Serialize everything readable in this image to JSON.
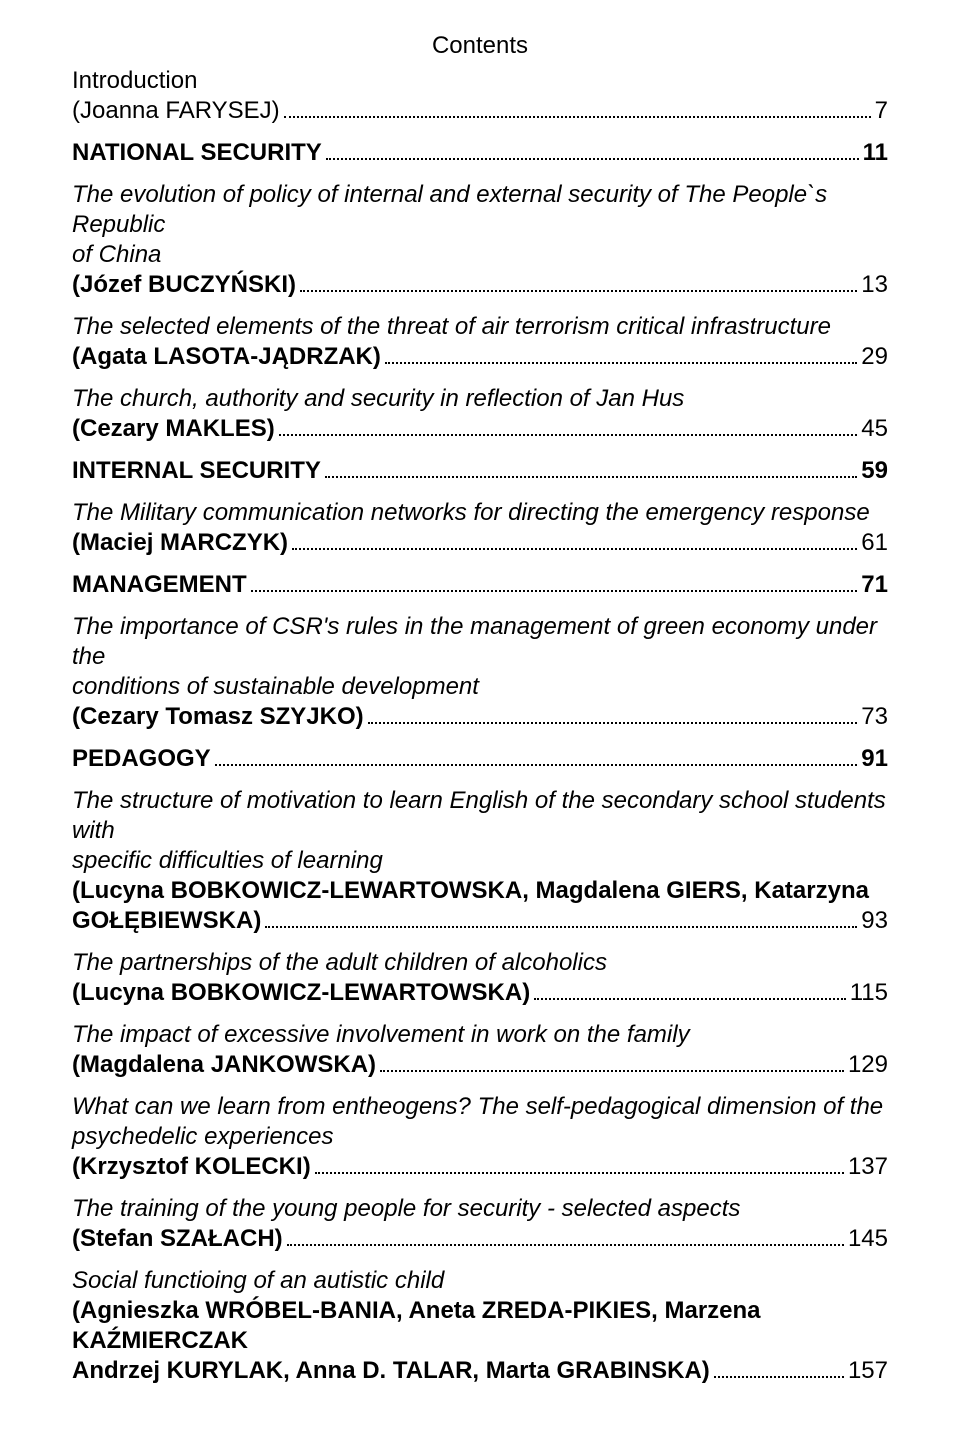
{
  "title": "Contents",
  "colors": {
    "text": "#000000",
    "background": "#ffffff",
    "leader": "#000000"
  },
  "typography": {
    "font_family": "Arial",
    "title_fontsize": 24,
    "body_fontsize": 24,
    "line_height": 1.25
  },
  "entries": [
    {
      "type": "entry",
      "title_lines": [
        "Introduction"
      ],
      "title_style": "normal",
      "author_prefix": "(",
      "author": "Joanna FARYSEJ",
      "author_suffix": ")",
      "author_style": "normal",
      "page": "7"
    },
    {
      "type": "section",
      "label": "NATIONAL SECURITY",
      "page": "11"
    },
    {
      "type": "entry",
      "title_lines": [
        "The evolution of policy of internal and external security of The People`s Republic",
        "of China"
      ],
      "title_style": "italic",
      "author_prefix": "(",
      "author": "Józef BUCZYŃSKI",
      "author_suffix": ")",
      "author_style": "bold",
      "page": "13"
    },
    {
      "type": "entry",
      "title_lines": [
        "The selected elements of the threat of air terrorism critical infrastructure"
      ],
      "title_style": "italic",
      "author_prefix": "(",
      "author": "Agata LASOTA-JĄDRZAK",
      "author_suffix": ")",
      "author_style": "bold",
      "page": "29"
    },
    {
      "type": "entry",
      "title_lines": [
        "The church, authority and security in reflection of Jan Hus"
      ],
      "title_style": "italic",
      "author_prefix": "(",
      "author": "Cezary MAKLES",
      "author_suffix": ")",
      "author_style": "bold",
      "page": "45"
    },
    {
      "type": "section",
      "label": "INTERNAL SECURITY",
      "page": "59"
    },
    {
      "type": "entry",
      "title_lines": [
        "The Military communication networks for directing the emergency response"
      ],
      "title_style": "italic",
      "author_prefix": "(",
      "author": "Maciej MARCZYK",
      "author_suffix": ")",
      "author_style": "bold",
      "page": "61"
    },
    {
      "type": "section",
      "label": "MANAGEMENT",
      "page": "71"
    },
    {
      "type": "entry",
      "title_lines": [
        "The importance of CSR's rules in the management of green economy under the",
        "conditions of sustainable development"
      ],
      "title_style": "italic",
      "author_prefix": "(",
      "author": "Cezary Tomasz SZYJKO",
      "author_suffix": ")",
      "author_style": "bold",
      "page": "73"
    },
    {
      "type": "section",
      "label": "PEDAGOGY",
      "page": "91"
    },
    {
      "type": "entry",
      "title_lines": [
        "The structure of motivation to learn English of the secondary school students  with",
        "specific difficulties of learning"
      ],
      "title_style": "italic",
      "author_overflow_lines": [
        "(Lucyna BOBKOWICZ-LEWARTOWSKA, Magdalena GIERS, Katarzyna"
      ],
      "author_prefix": "",
      "author": "GOŁĘBIEWSKA",
      "author_suffix": ")",
      "author_style": "bold",
      "page": "93"
    },
    {
      "type": "entry",
      "title_lines": [
        "The partnerships of the adult children of alcoholics"
      ],
      "title_style": "italic",
      "author_prefix": "(",
      "author": "Lucyna BOBKOWICZ-LEWARTOWSKA",
      "author_suffix": ")",
      "author_style": "bold",
      "page": "115"
    },
    {
      "type": "entry",
      "title_lines": [
        "The impact of excessive involvement in work on the family"
      ],
      "title_style": "italic",
      "author_prefix": "(",
      "author": "Magdalena JANKOWSKA",
      "author_suffix": ")",
      "author_style": "bold",
      "page": "129"
    },
    {
      "type": "entry",
      "title_lines": [
        "What can we learn from entheogens? The self-pedagogical dimension of the",
        "psychedelic experiences"
      ],
      "title_style": "italic",
      "author_prefix": "(",
      "author": "Krzysztof KOLECKI",
      "author_suffix": ")",
      "author_style": "bold",
      "page": "137"
    },
    {
      "type": "entry",
      "title_lines": [
        "The training of the young people for security - selected aspects"
      ],
      "title_style": "italic",
      "author_prefix": "(",
      "author": "Stefan SZAŁACH",
      "author_suffix": ")",
      "author_style": "bold",
      "page": "145"
    },
    {
      "type": "entry",
      "title_lines": [
        "Social functioing of an autistic child"
      ],
      "title_style": "italic",
      "author_overflow_lines": [
        "(Agnieszka WRÓBEL-BANIA, Aneta ZREDA-PIKIES, Marzena KAŹMIERCZAK"
      ],
      "author_prefix": "",
      "author": "Andrzej KURYLAK, Anna D. TALAR, Marta GRABINSKA",
      "author_suffix": ")",
      "author_style": "bold",
      "page": "157"
    }
  ]
}
